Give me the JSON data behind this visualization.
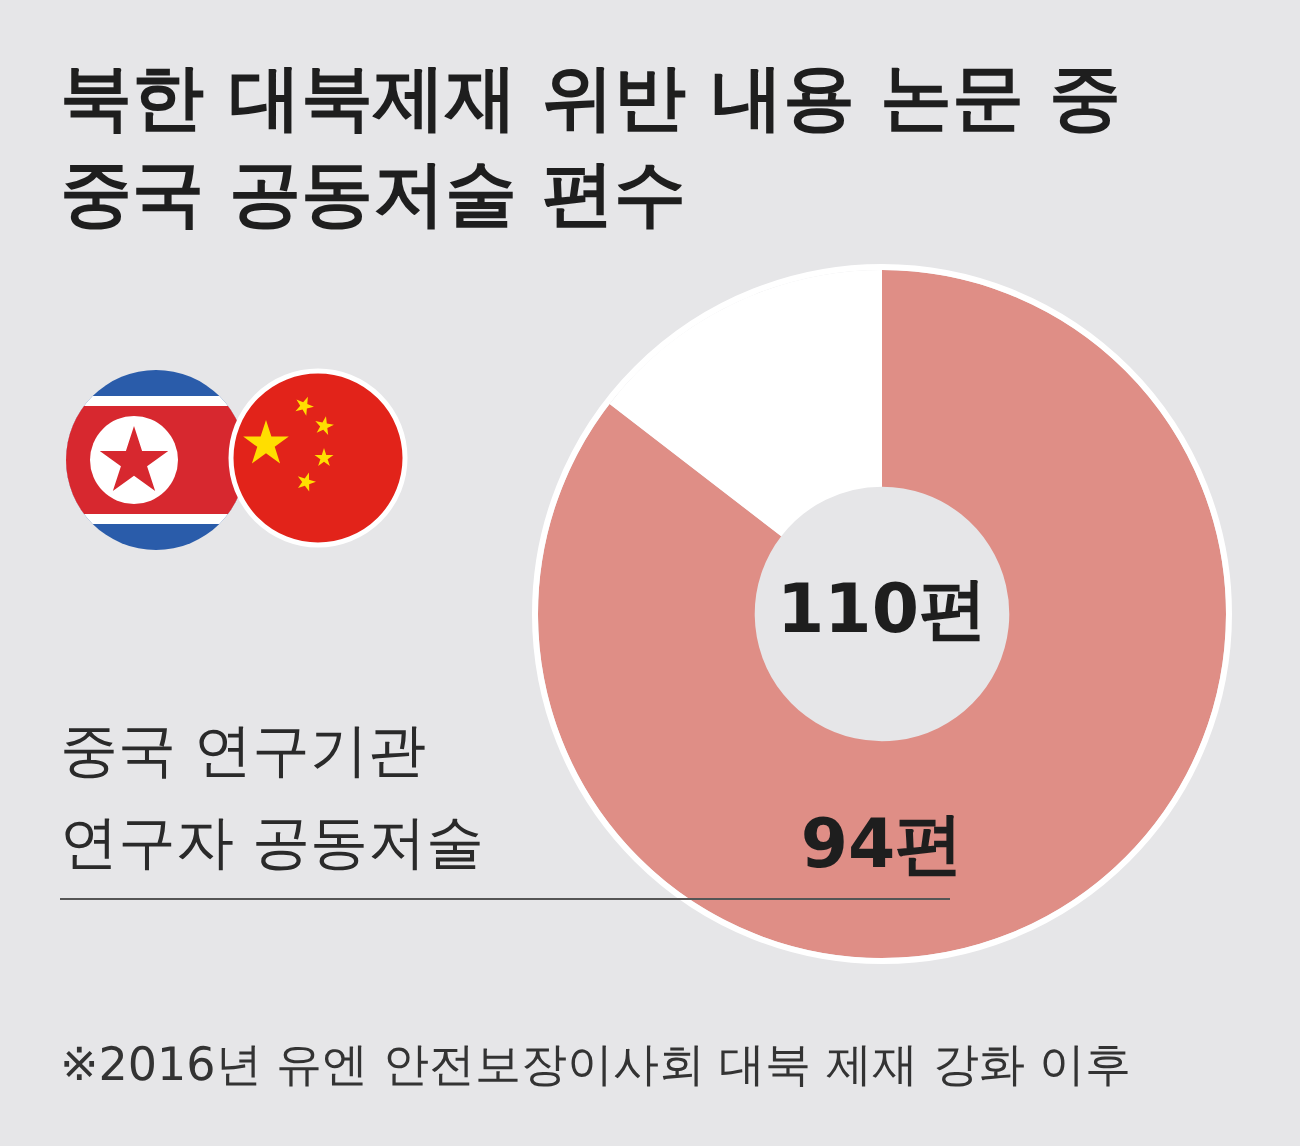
{
  "chart_data": {
    "type": "donut",
    "title": "북한 대북제재 위반 내용 논문 중 중국 공동저술 편수",
    "categories": [
      "중국 연구기관 연구자 공동저술",
      null
    ],
    "values": [
      94,
      16
    ],
    "colors": [
      "#df8e86",
      "#ffffff"
    ],
    "value_labels": [
      "94편",
      null
    ],
    "annotations": [
      "110편",
      "※2016년 유엔 안전보장이사회 대북 제재 강화 이후"
    ]
  }
}
